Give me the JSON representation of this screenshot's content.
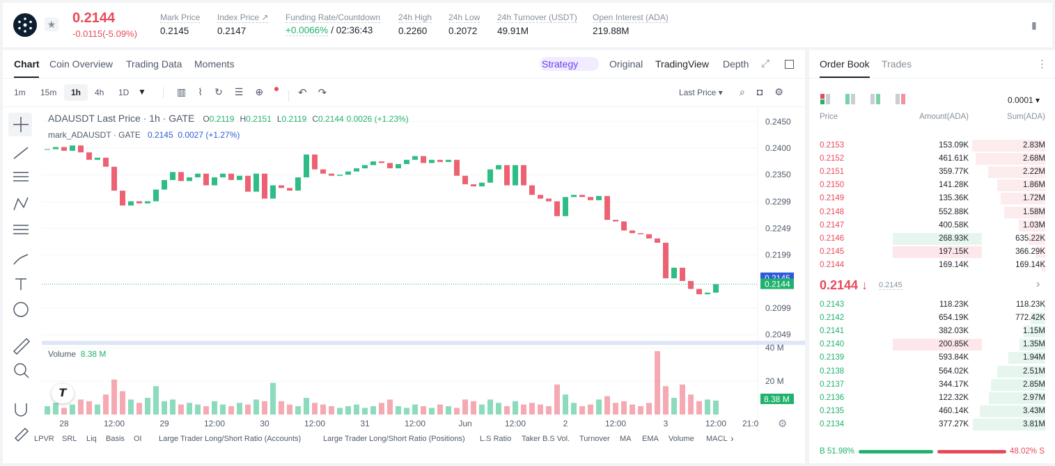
{
  "header": {
    "price": "0.2144",
    "change": "-0.0115(-5.09%)",
    "stats": [
      {
        "label": "Mark Price",
        "value": "0.2145"
      },
      {
        "label": "Index Price ↗",
        "value": "0.2147"
      },
      {
        "label": "Funding Rate/Countdown",
        "value": "+0.0066%",
        "value2": "/ 02:36:43"
      },
      {
        "label": "24h High",
        "value": "0.2260"
      },
      {
        "label": "24h Low",
        "value": "0.2072"
      },
      {
        "label": "24h Turnover (USDT)",
        "value": "49.91M"
      },
      {
        "label": "Open Interest (ADA)",
        "value": "219.88M"
      }
    ]
  },
  "tabs": [
    "Chart",
    "Coin Overview",
    "Trading Data",
    "Moments"
  ],
  "views": [
    "Strategy",
    "Original",
    "TradingView",
    "Depth"
  ],
  "intervals": [
    "1m",
    "15m",
    "1h",
    "4h",
    "1D"
  ],
  "price_type": "Last Price",
  "legend": {
    "title": "ADAUSDT Last Price · 1h · GATE",
    "ohlc": [
      {
        "k": "O",
        "v": "0.2119"
      },
      {
        "k": "H",
        "v": "0.2151"
      },
      {
        "k": "L",
        "v": "0.2119"
      },
      {
        "k": "C",
        "v": "0.2144"
      }
    ],
    "change": "0.0026 (+1.23%)",
    "mark_title": "mark_ADAUSDT · GATE",
    "mark_value": "0.2145",
    "mark_change": "0.0027 (+1.27%)"
  },
  "chart": {
    "close": [
      0.2398,
      0.2402,
      0.2395,
      0.2405,
      0.2392,
      0.2378,
      0.2382,
      0.2365,
      0.232,
      0.2292,
      0.23,
      0.2296,
      0.23,
      0.2322,
      0.234,
      0.2355,
      0.2338,
      0.2345,
      0.2352,
      0.233,
      0.2345,
      0.2352,
      0.234,
      0.2348,
      0.2318,
      0.2352,
      0.2305,
      0.233,
      0.2325,
      0.232,
      0.2345,
      0.2388,
      0.236,
      0.2352,
      0.2348,
      0.235,
      0.2356,
      0.2362,
      0.2368,
      0.2375,
      0.2372,
      0.2362,
      0.237,
      0.2378,
      0.2385,
      0.2372,
      0.2378,
      0.2374,
      0.2378,
      0.2348,
      0.2332,
      0.2328,
      0.2335,
      0.236,
      0.2368,
      0.233,
      0.2368,
      0.233,
      0.2312,
      0.2305,
      0.23,
      0.2272,
      0.2308,
      0.2312,
      0.2308,
      0.2302,
      0.231,
      0.2265,
      0.2262,
      0.2245,
      0.224,
      0.2238,
      0.223,
      0.2222,
      0.2155,
      0.2175,
      0.215,
      0.2135,
      0.2125,
      0.2128,
      0.2144
    ],
    "volume": [
      5,
      7,
      4,
      6,
      9,
      8,
      6,
      12,
      21,
      14,
      9,
      7,
      10,
      17,
      8,
      9,
      6,
      7,
      6,
      5,
      8,
      6,
      5,
      7,
      6,
      9,
      8,
      19,
      8,
      6,
      5,
      10,
      7,
      6,
      5,
      4,
      5,
      6,
      4,
      5,
      7,
      9,
      5,
      4,
      6,
      5,
      4,
      6,
      5,
      4,
      9,
      8,
      6,
      9,
      7,
      5,
      8,
      6,
      7,
      6,
      5,
      18,
      12,
      7,
      5,
      6,
      9,
      11,
      7,
      8,
      6,
      5,
      7,
      38,
      17,
      10,
      18,
      12,
      8,
      9,
      8.38
    ],
    "ylim": [
      0.20374,
      0.24759
    ],
    "yticks": [
      {
        "value": 0.245,
        "label": "0.2450"
      },
      {
        "value": 0.24,
        "label": "0.2400"
      },
      {
        "value": 0.235,
        "label": "0.2350"
      },
      {
        "value": 0.2299,
        "label": "0.2299"
      },
      {
        "value": 0.2249,
        "label": "0.2249"
      },
      {
        "value": 0.2199,
        "label": "0.2199"
      },
      {
        "value": 0.2099,
        "label": "0.2099"
      },
      {
        "value": 0.2049,
        "label": "0.2049"
      }
    ],
    "vol_ylim": [
      0,
      41.7
    ],
    "vol_ticks": [
      {
        "value": 40,
        "label": "40 M"
      },
      {
        "value": 20,
        "label": "20 M"
      }
    ],
    "x_labels": [
      "28",
      "12:00",
      "29",
      "12:00",
      "30",
      "12:00",
      "31",
      "12:00",
      "Jun",
      "12:00",
      "2",
      "12:00",
      "3",
      "12:00",
      "21:0"
    ],
    "mark_price": 0.2145,
    "last_price": 0.2144,
    "volume_label": "Volume",
    "volume_value": "8.38 M",
    "volume_tag": "8.38 M"
  },
  "indicators": [
    "LPVR",
    "SRL",
    "Liq",
    "Basis",
    "OI",
    "Large Trader Long/Short Ratio (Accounts)",
    "Large Trader Long/Short Ratio (Positions)",
    "L.S Ratio",
    "Taker B.S Vol.",
    "Turnover",
    "MA",
    "EMA",
    "Volume",
    "MACL"
  ],
  "order_book": {
    "tabs": [
      "Order Book",
      "Trades"
    ],
    "precision": "0.0001",
    "columns": [
      "Price",
      "Amount(ADA)",
      "Sum(ADA)"
    ],
    "asks": [
      [
        "0.2153",
        "153.09K",
        "2.83M"
      ],
      [
        "0.2152",
        "461.61K",
        "2.68M"
      ],
      [
        "0.2151",
        "359.77K",
        "2.22M"
      ],
      [
        "0.2150",
        "141.28K",
        "1.86M"
      ],
      [
        "0.2149",
        "135.36K",
        "1.72M"
      ],
      [
        "0.2148",
        "552.88K",
        "1.58M"
      ],
      [
        "0.2147",
        "400.58K",
        "1.03M"
      ],
      [
        "0.2146",
        "268.93K",
        "635.22K"
      ],
      [
        "0.2145",
        "197.15K",
        "366.29K"
      ],
      [
        "0.2144",
        "169.14K",
        "169.14K"
      ]
    ],
    "mid_price": "0.2144",
    "mid_mark": "0.2145",
    "bids": [
      [
        "0.2143",
        "118.23K",
        "118.23K"
      ],
      [
        "0.2142",
        "654.19K",
        "772.42K"
      ],
      [
        "0.2141",
        "382.03K",
        "1.15M"
      ],
      [
        "0.2140",
        "200.85K",
        "1.35M"
      ],
      [
        "0.2139",
        "593.84K",
        "1.94M"
      ],
      [
        "0.2138",
        "564.02K",
        "2.51M"
      ],
      [
        "0.2137",
        "344.17K",
        "2.85M"
      ],
      [
        "0.2136",
        "122.32K",
        "2.97M"
      ],
      [
        "0.2135",
        "460.14K",
        "3.43M"
      ],
      [
        "0.2134",
        "377.27K",
        "3.81M"
      ]
    ],
    "buy": {
      "value": 51.98,
      "label": "B 51.98%"
    },
    "sell": {
      "value": 48.02,
      "label": "48.02% S"
    }
  }
}
